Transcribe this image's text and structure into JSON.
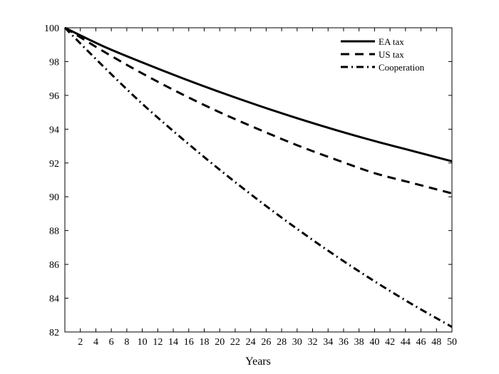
{
  "chart_data": {
    "type": "line",
    "title": "",
    "xlabel": "Years",
    "ylabel": "",
    "xlim": [
      0,
      50
    ],
    "ylim": [
      82,
      100
    ],
    "xticks": [
      2,
      4,
      6,
      8,
      10,
      12,
      14,
      16,
      18,
      20,
      22,
      24,
      26,
      28,
      30,
      32,
      34,
      36,
      38,
      40,
      42,
      44,
      46,
      48,
      50
    ],
    "yticks": [
      82,
      84,
      86,
      88,
      90,
      92,
      94,
      96,
      98,
      100
    ],
    "grid": false,
    "legend_position": "top-right",
    "series": [
      {
        "name": "EA tax",
        "line_style": "solid",
        "color": "#000000",
        "x": [
          0,
          5,
          10,
          15,
          20,
          25,
          30,
          35,
          40,
          45,
          50
        ],
        "y": [
          100,
          98.9,
          97.95,
          97.05,
          96.2,
          95.4,
          94.65,
          93.95,
          93.3,
          92.7,
          92.1
        ]
      },
      {
        "name": "US tax",
        "line_style": "dashed",
        "color": "#000000",
        "x": [
          0,
          5,
          10,
          15,
          20,
          25,
          30,
          35,
          40,
          45,
          50
        ],
        "y": [
          100,
          98.6,
          97.3,
          96.1,
          95.0,
          94.0,
          93.05,
          92.2,
          91.4,
          90.8,
          90.2
        ]
      },
      {
        "name": "Cooperation",
        "line_style": "dash-dot",
        "color": "#000000",
        "x": [
          0,
          5,
          10,
          15,
          20,
          25,
          30,
          35,
          40,
          45,
          50
        ],
        "y": [
          100,
          97.7,
          95.5,
          93.5,
          91.6,
          89.8,
          88.1,
          86.5,
          85.0,
          83.6,
          82.3
        ]
      }
    ]
  }
}
